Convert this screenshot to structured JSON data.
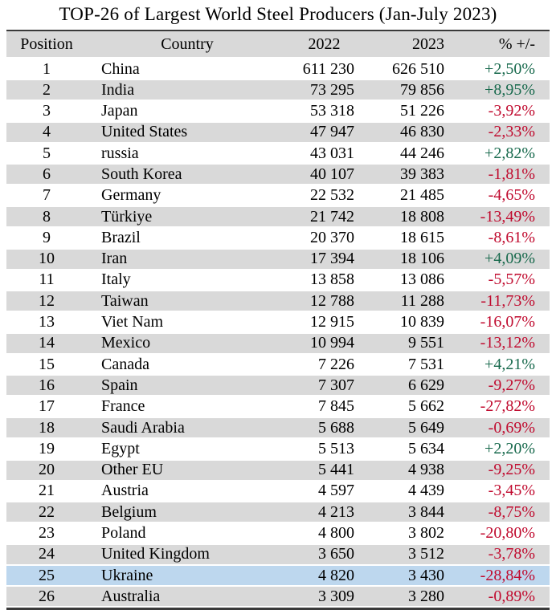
{
  "chart_data": {
    "type": "table",
    "title": "TOP-26 of Largest World Steel Producers (Jan-July 2023)",
    "columns": [
      "Position",
      "Country",
      "2022",
      "2023",
      "% +/-"
    ],
    "units_note": "values as printed, thousands separated by spaces, decimal comma in percents",
    "highlighted_position": "25",
    "rows": [
      [
        "1",
        "China",
        "611 230",
        "626 510",
        "+2,50%"
      ],
      [
        "2",
        "India",
        "73 295",
        "79 856",
        "+8,95%"
      ],
      [
        "3",
        "Japan",
        "53 318",
        "51 226",
        "-3,92%"
      ],
      [
        "4",
        "United States",
        "47 947",
        "46 830",
        "-2,33%"
      ],
      [
        "5",
        "russia",
        "43 031",
        "44 246",
        "+2,82%"
      ],
      [
        "6",
        "South Korea",
        "40 107",
        "39 383",
        "-1,81%"
      ],
      [
        "7",
        "Germany",
        "22 532",
        "21 485",
        "-4,65%"
      ],
      [
        "8",
        "Türkiye",
        "21 742",
        "18 808",
        "-13,49%"
      ],
      [
        "9",
        "Brazil",
        "20 370",
        "18 615",
        "-8,61%"
      ],
      [
        "10",
        "Iran",
        "17 394",
        "18 106",
        "+4,09%"
      ],
      [
        "11",
        "Italy",
        "13 858",
        "13 086",
        "-5,57%"
      ],
      [
        "12",
        "Taiwan",
        "12 788",
        "11 288",
        "-11,73%"
      ],
      [
        "13",
        "Viet Nam",
        "12 915",
        "10 839",
        "-16,07%"
      ],
      [
        "14",
        "Mexico",
        "10 994",
        "9 551",
        "-13,12%"
      ],
      [
        "15",
        "Canada",
        "7 226",
        "7 531",
        "+4,21%"
      ],
      [
        "16",
        "Spain",
        "7 307",
        "6 629",
        "-9,27%"
      ],
      [
        "17",
        "France",
        "7 845",
        "5 662",
        "-27,82%"
      ],
      [
        "18",
        "Saudi Arabia",
        "5 688",
        "5 649",
        "-0,69%"
      ],
      [
        "19",
        "Egypt",
        "5 513",
        "5 634",
        "+2,20%"
      ],
      [
        "20",
        "Other EU",
        "5 441",
        "4 938",
        "-9,25%"
      ],
      [
        "21",
        "Austria",
        "4 597",
        "4 439",
        "-3,45%"
      ],
      [
        "22",
        "Belgium",
        "4 213",
        "3 844",
        "-8,75%"
      ],
      [
        "23",
        "Poland",
        "4 800",
        "3 802",
        "-20,80%"
      ],
      [
        "24",
        "United Kingdom",
        "3 650",
        "3 512",
        "-3,78%"
      ],
      [
        "25",
        "Ukraine",
        "4 820",
        "3 430",
        "-28,84%"
      ],
      [
        "26",
        "Australia",
        "3 309",
        "3 280",
        "-0,89%"
      ]
    ]
  },
  "colors": {
    "positive_green": "#17694C",
    "negative_red": "#C00A2E",
    "row_stripe_gray": "#D9D9D9",
    "row_white": "#FFFFFF",
    "highlight_blue": "#BDD7EE",
    "border_dark": "#3A3A3A"
  }
}
